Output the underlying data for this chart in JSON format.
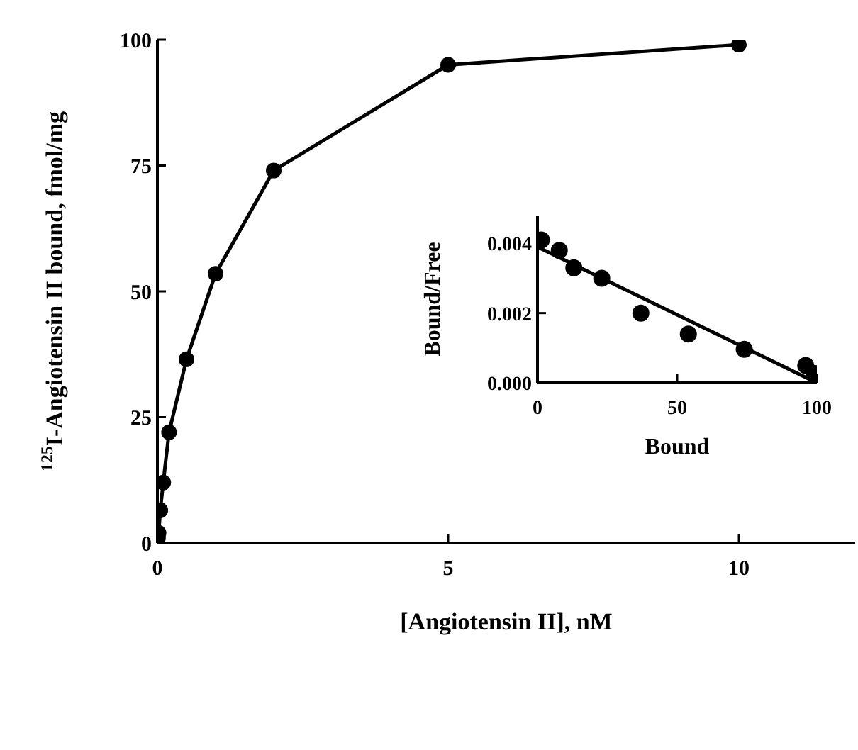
{
  "chart_data": [
    {
      "type": "line",
      "xlabel": "[Angiotensin II], nM",
      "ylabel": "$^{125}$I-Angiotensin II bound, fmol/mg",
      "x": [
        0.01,
        0.02,
        0.05,
        0.1,
        0.2,
        0.5,
        1,
        2,
        5,
        10
      ],
      "series": [
        {
          "color": "#000000",
          "values": [
            1,
            2,
            6.5,
            12,
            22,
            36.5,
            53.5,
            74,
            95,
            99
          ]
        }
      ],
      "xlim": [
        0,
        12
      ],
      "xticks": [
        0,
        5,
        10
      ],
      "ylim": [
        0,
        100
      ],
      "yticks": [
        0,
        25,
        50,
        75,
        100
      ],
      "marker": "circle"
    },
    {
      "type": "scatter",
      "xlabel": "Bound",
      "ylabel": "Bound/Free",
      "series": [
        {
          "color": "#000000",
          "x": [
            1.4,
            7.8,
            13,
            23,
            37,
            54,
            74,
            96,
            99
          ],
          "values": [
            0.0041,
            0.0038,
            0.0033,
            0.003,
            0.002,
            0.0014,
            0.00096,
            0.0005,
            0.00027
          ]
        },
        {
          "type": "line",
          "marker": "none",
          "color": "#000000",
          "x": [
            0,
            100
          ],
          "values": [
            0.0039,
            0
          ]
        }
      ],
      "xlim": [
        0,
        100
      ],
      "xticks": [
        0,
        50,
        100
      ],
      "ylim": [
        0,
        0.0048
      ],
      "yticks": [
        {
          "value": 0,
          "label": "0.000"
        },
        0.002,
        0.004
      ],
      "marker": "circle"
    }
  ]
}
